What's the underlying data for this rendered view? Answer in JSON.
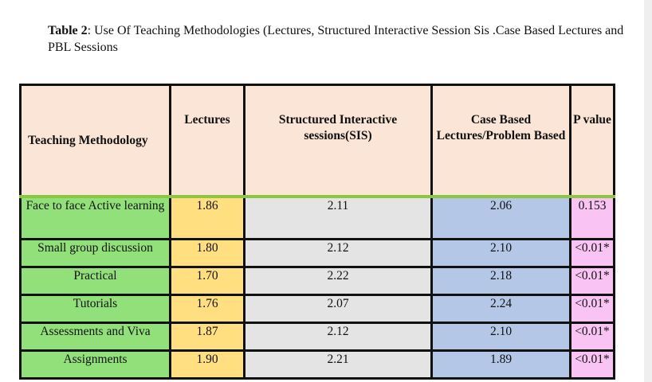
{
  "caption": {
    "label": "Table 2",
    "text": ": Use Of Teaching Methodologies (Lectures, Structured Interactive Session Sis .Case Based Lectures and PBL Sessions"
  },
  "table": {
    "headers": [
      "Teaching Methodology",
      "Lectures",
      "Structured  Interactive sessions(SIS)",
      "Case Based Lectures/Problem Based",
      "P value"
    ],
    "rows": [
      {
        "method": "Face to face Active learning",
        "lectures": "1.86",
        "sis": "2.11",
        "cbl": "2.06",
        "p": "0.153"
      },
      {
        "method": "Small group discussion",
        "lectures": "1.80",
        "sis": "2.12",
        "cbl": "2.10",
        "p": "<0.01*"
      },
      {
        "method": "Practical",
        "lectures": "1.70",
        "sis": "2.22",
        "cbl": "2.18",
        "p": "<0.01*"
      },
      {
        "method": "Tutorials",
        "lectures": "1.76",
        "sis": "2.07",
        "cbl": "2.24",
        "p": "<0.01*"
      },
      {
        "method": "Assessments and Viva",
        "lectures": "1.87",
        "sis": "2.12",
        "cbl": "2.10",
        "p": "<0.01*"
      },
      {
        "method": "Assignments",
        "lectures": "1.90",
        "sis": "2.21",
        "cbl": "1.89",
        "p": "<0.01*"
      }
    ]
  },
  "colors": {
    "header_bg": "#fbe5d6",
    "method_col": "#92e07a",
    "lectures_col": "#ffdf80",
    "sis_col": "#e4e4e4",
    "cbl_col": "#b4c7e7",
    "pvalue_col": "#f9c3f4",
    "header_separator": "#8dc63f"
  }
}
